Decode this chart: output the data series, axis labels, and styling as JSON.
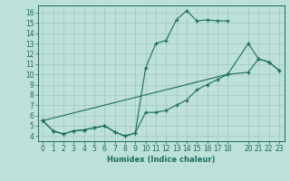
{
  "xlabel": "Humidex (Indice chaleur)",
  "ylabel": "",
  "bg_color": "#bde0d8",
  "grid_color": "#9cc8c0",
  "line_color": "#1a6b60",
  "xlim": [
    -0.5,
    23.5
  ],
  "ylim": [
    3.5,
    16.7
  ],
  "xticks": [
    0,
    1,
    2,
    3,
    4,
    5,
    6,
    7,
    8,
    9,
    10,
    11,
    12,
    13,
    14,
    15,
    16,
    17,
    18,
    20,
    21,
    22,
    23
  ],
  "yticks": [
    4,
    5,
    6,
    7,
    8,
    9,
    10,
    11,
    12,
    13,
    14,
    15,
    16
  ],
  "line1_x": [
    0,
    1,
    2,
    3,
    4,
    5,
    6,
    7,
    8,
    9,
    10,
    11,
    12,
    13,
    14,
    15,
    16,
    17,
    18
  ],
  "line1_y": [
    5.5,
    4.5,
    4.2,
    4.5,
    4.6,
    4.8,
    5.0,
    4.4,
    4.0,
    4.3,
    10.6,
    13.0,
    13.3,
    15.3,
    16.2,
    15.2,
    15.3,
    15.2,
    15.2
  ],
  "line2_x": [
    0,
    1,
    2,
    3,
    4,
    5,
    6,
    7,
    8,
    9,
    10,
    11,
    12,
    13,
    14,
    15,
    16,
    17,
    18,
    20,
    21,
    22,
    23
  ],
  "line2_y": [
    5.5,
    4.5,
    4.2,
    4.5,
    4.6,
    4.8,
    5.0,
    4.4,
    4.0,
    4.3,
    6.3,
    6.3,
    6.5,
    7.0,
    7.5,
    8.5,
    9.0,
    9.5,
    10.0,
    10.2,
    11.5,
    11.2,
    10.4
  ],
  "line3_x": [
    0,
    18,
    20,
    21,
    22,
    23
  ],
  "line3_y": [
    5.5,
    10.0,
    13.0,
    11.5,
    11.2,
    10.4
  ],
  "tick_fontsize": 5.5,
  "xlabel_fontsize": 6.0
}
